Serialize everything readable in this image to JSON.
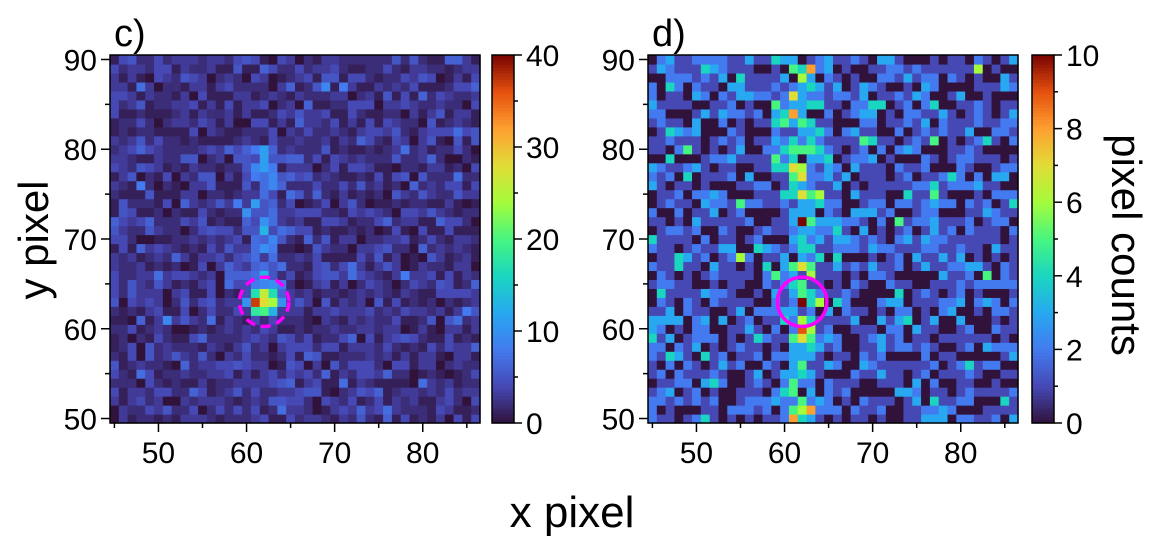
{
  "figure": {
    "xlabel": "x pixel",
    "ylabel": "y pixel",
    "colorbar_label": "pixel counts",
    "colormap": "turbo"
  },
  "chart_data": [
    {
      "type": "heatmap",
      "panel_label": "c)",
      "xlim": [
        44.5,
        86.5
      ],
      "ylim": [
        49.5,
        90.5
      ],
      "xticks": [
        50,
        60,
        70,
        80
      ],
      "yticks": [
        50,
        60,
        70,
        80,
        90
      ],
      "colorbar_range": [
        0,
        40
      ],
      "colorbar_ticks": [
        0,
        10,
        20,
        30,
        40
      ],
      "background_level": 2.5,
      "features": [
        {
          "kind": "hotspot",
          "x": 62,
          "y": 63,
          "peak": 40
        },
        {
          "kind": "faint vertical streak",
          "x": 62,
          "y_range": [
            63,
            80
          ],
          "level": 6
        }
      ],
      "circle": {
        "x": 62,
        "y": 63,
        "radius": 2.8,
        "style": "dashed",
        "color": "#ff00ff"
      }
    },
    {
      "type": "heatmap",
      "panel_label": "d)",
      "xlim": [
        44.5,
        86.5
      ],
      "ylim": [
        49.5,
        90.5
      ],
      "xticks": [
        50,
        60,
        70,
        80
      ],
      "yticks": [
        50,
        60,
        70,
        80,
        90
      ],
      "colorbar_range": [
        0,
        10
      ],
      "colorbar_ticks": [
        0,
        2,
        4,
        6,
        8,
        10
      ],
      "background_level": 1.2,
      "features": [
        {
          "kind": "vertical streak",
          "x": 62,
          "y_range": [
            50,
            90
          ],
          "level": 3
        }
      ],
      "circle": {
        "x": 62,
        "y": 63,
        "radius": 2.8,
        "style": "solid",
        "color": "#ff00ff"
      }
    }
  ]
}
